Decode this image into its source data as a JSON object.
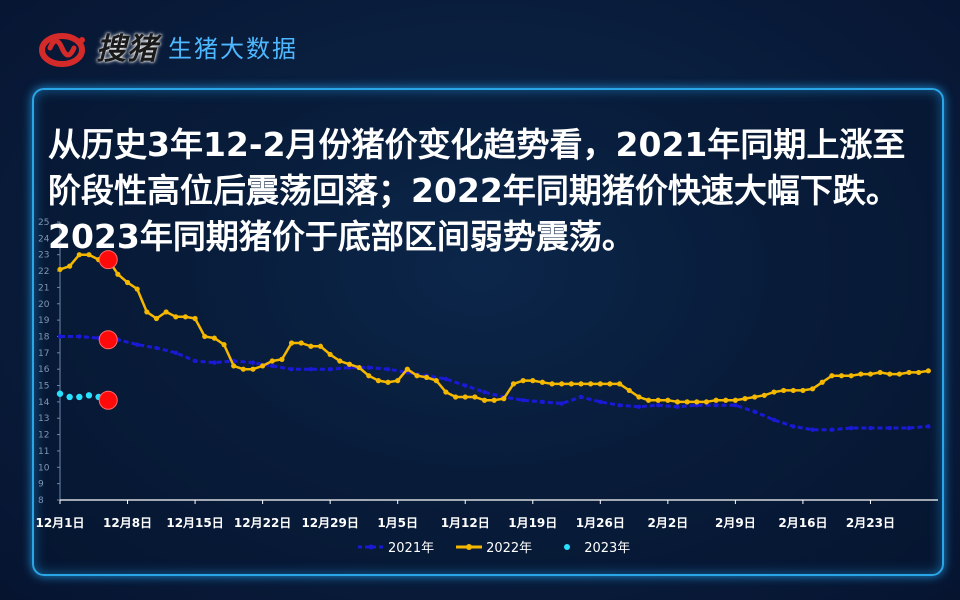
{
  "brand": {
    "name": "搜猪",
    "subtitle": "生猪大数据",
    "colors": {
      "logo_red": "#d42a2a",
      "subtitle": "#4db8ff"
    }
  },
  "headline": "从历史3年12-2月份猪价变化趋势看，2021年同期上涨至阶段性高位后震荡回落；2022年同期猪价快速大幅下跌。2023年同期猪价于底部区间弱势震荡。",
  "chart_data": {
    "type": "line",
    "title": "",
    "xlabel": "",
    "ylabel": "",
    "ylim": [
      8,
      25
    ],
    "yticks": [
      8,
      9,
      10,
      11,
      12,
      13,
      14,
      15,
      16,
      17,
      18,
      19,
      20,
      21,
      22,
      23,
      24,
      25
    ],
    "x_tick_labels": [
      "12月1日",
      "12月8日",
      "12月15日",
      "12月22日",
      "12月29日",
      "1月5日",
      "1月12日",
      "1月19日",
      "1月26日",
      "2月2日",
      "2月9日",
      "2月16日",
      "2月23日"
    ],
    "x_tick_day_index": [
      0,
      7,
      14,
      21,
      28,
      35,
      42,
      49,
      56,
      63,
      70,
      77,
      84
    ],
    "x_range_days": [
      0,
      91
    ],
    "grid": false,
    "legend_position": "bottom",
    "series": [
      {
        "name": "2021年",
        "color": "#1a1ad6",
        "x": [
          0,
          2,
          4,
          6,
          8,
          10,
          12,
          14,
          16,
          18,
          20,
          22,
          24,
          26,
          28,
          30,
          32,
          34,
          36,
          38,
          40,
          42,
          44,
          46,
          48,
          50,
          52,
          54,
          56,
          58,
          60,
          62,
          64,
          66,
          68,
          70,
          72,
          74,
          76,
          78,
          80,
          82,
          84,
          86,
          88,
          90
        ],
        "values": [
          18.0,
          18.0,
          17.9,
          17.8,
          17.5,
          17.3,
          17.0,
          16.5,
          16.4,
          16.5,
          16.4,
          16.2,
          16.0,
          16.0,
          16.0,
          16.1,
          16.1,
          16.0,
          15.8,
          15.6,
          15.4,
          15.0,
          14.6,
          14.3,
          14.1,
          14.0,
          13.9,
          14.3,
          14.0,
          13.8,
          13.7,
          13.8,
          13.7,
          13.8,
          13.8,
          13.8,
          13.4,
          12.9,
          12.5,
          12.3,
          12.3,
          12.4,
          12.4,
          12.4,
          12.4,
          12.5
        ]
      },
      {
        "name": "2022年",
        "color": "#f5b800",
        "x": [
          0,
          1,
          2,
          3,
          4,
          5,
          6,
          7,
          8,
          9,
          10,
          11,
          12,
          13,
          14,
          15,
          16,
          17,
          18,
          19,
          20,
          21,
          22,
          23,
          24,
          25,
          26,
          27,
          28,
          29,
          30,
          31,
          32,
          33,
          34,
          35,
          36,
          37,
          38,
          39,
          40,
          41,
          42,
          43,
          44,
          45,
          46,
          47,
          48,
          49,
          50,
          51,
          52,
          53,
          54,
          55,
          56,
          57,
          58,
          59,
          60,
          61,
          62,
          63,
          64,
          65,
          66,
          67,
          68,
          69,
          70,
          71,
          72,
          73,
          74,
          75,
          76,
          77,
          78,
          79,
          80,
          81,
          82,
          83,
          84,
          85,
          86,
          87,
          88,
          89,
          90
        ],
        "values": [
          22.1,
          22.3,
          23.0,
          23.0,
          22.7,
          22.7,
          21.8,
          21.3,
          20.9,
          19.5,
          19.1,
          19.5,
          19.2,
          19.2,
          19.1,
          18.0,
          17.9,
          17.5,
          16.2,
          16.0,
          16.0,
          16.2,
          16.5,
          16.6,
          17.6,
          17.6,
          17.4,
          17.4,
          16.9,
          16.5,
          16.3,
          16.1,
          15.6,
          15.3,
          15.2,
          15.3,
          16.0,
          15.6,
          15.5,
          15.3,
          14.6,
          14.3,
          14.3,
          14.3,
          14.1,
          14.1,
          14.2,
          15.1,
          15.3,
          15.3,
          15.2,
          15.1,
          15.1,
          15.1,
          15.1,
          15.1,
          15.1,
          15.1,
          15.1,
          14.7,
          14.3,
          14.1,
          14.1,
          14.1,
          14.0,
          14.0,
          14.0,
          14.0,
          14.1,
          14.1,
          14.1,
          14.2,
          14.3,
          14.4,
          14.6,
          14.7,
          14.7,
          14.7,
          14.8,
          15.2,
          15.6,
          15.6,
          15.6,
          15.7,
          15.7,
          15.8,
          15.7,
          15.7,
          15.8,
          15.8,
          15.9
        ]
      },
      {
        "name": "2023年",
        "color": "#28e0ff",
        "x": [
          0,
          1,
          2,
          3,
          4
        ],
        "values": [
          14.5,
          14.3,
          14.3,
          14.4,
          14.3
        ]
      }
    ],
    "markers": [
      {
        "x": 5,
        "y": 22.7,
        "color": "#ff0a0a"
      },
      {
        "x": 5,
        "y": 17.8,
        "color": "#ff0a0a"
      },
      {
        "x": 5,
        "y": 14.1,
        "color": "#ff0a0a"
      }
    ]
  }
}
